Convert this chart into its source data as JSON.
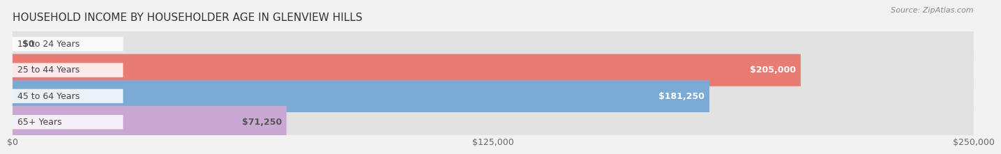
{
  "title": "HOUSEHOLD INCOME BY HOUSEHOLDER AGE IN GLENVIEW HILLS",
  "source": "Source: ZipAtlas.com",
  "categories": [
    "15 to 24 Years",
    "25 to 44 Years",
    "45 to 64 Years",
    "65+ Years"
  ],
  "values": [
    0,
    205000,
    181250,
    71250
  ],
  "bar_colors": [
    "#f5c98a",
    "#e87b72",
    "#7baad4",
    "#c9a8d4"
  ],
  "background_color": "#f2f2f2",
  "bar_bg_color": "#e2e2e2",
  "xlim": [
    0,
    250000
  ],
  "xticks": [
    0,
    125000,
    250000
  ],
  "xtick_labels": [
    "$0",
    "$125,000",
    "$250,000"
  ],
  "label_fontsize": 9,
  "title_fontsize": 11,
  "bar_height": 0.62,
  "value_labels": [
    "$0",
    "$205,000",
    "$181,250",
    "$71,250"
  ],
  "value_label_colors": [
    "#555555",
    "#ffffff",
    "#ffffff",
    "#555555"
  ]
}
